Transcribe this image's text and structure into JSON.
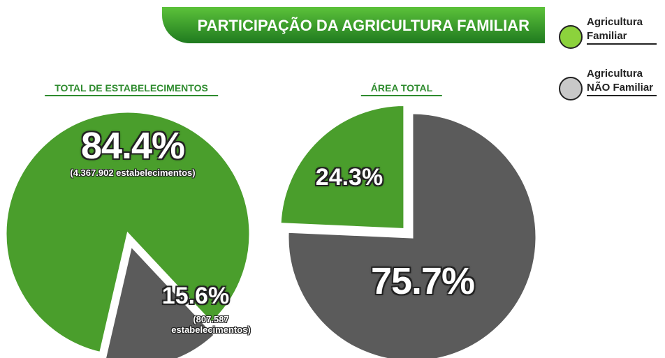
{
  "title": "PARTICIPAÇÃO DA AGRICULTURA FAMILIAR",
  "chart_data": [
    {
      "type": "pie",
      "title": "TOTAL DE ESTABELECIMENTOS",
      "categories": [
        "Agricultura Familiar",
        "Agricultura NÃO Familiar"
      ],
      "values": [
        84.4,
        15.6
      ],
      "value_labels": [
        "84.4%",
        "15.6%"
      ],
      "annotations": [
        "(4.367.902 estabelecimentos)",
        "(807.587 estabelecimentos)"
      ],
      "colors": [
        "#4a9e2c",
        "#5b5b5b"
      ]
    },
    {
      "type": "pie",
      "title": "ÁREA TOTAL",
      "categories": [
        "Agricultura Familiar",
        "Agricultura NÃO Familiar"
      ],
      "values": [
        24.3,
        75.7
      ],
      "value_labels": [
        "24.3%",
        "75.7%"
      ],
      "colors": [
        "#4a9e2c",
        "#5b5b5b"
      ]
    }
  ]
}
